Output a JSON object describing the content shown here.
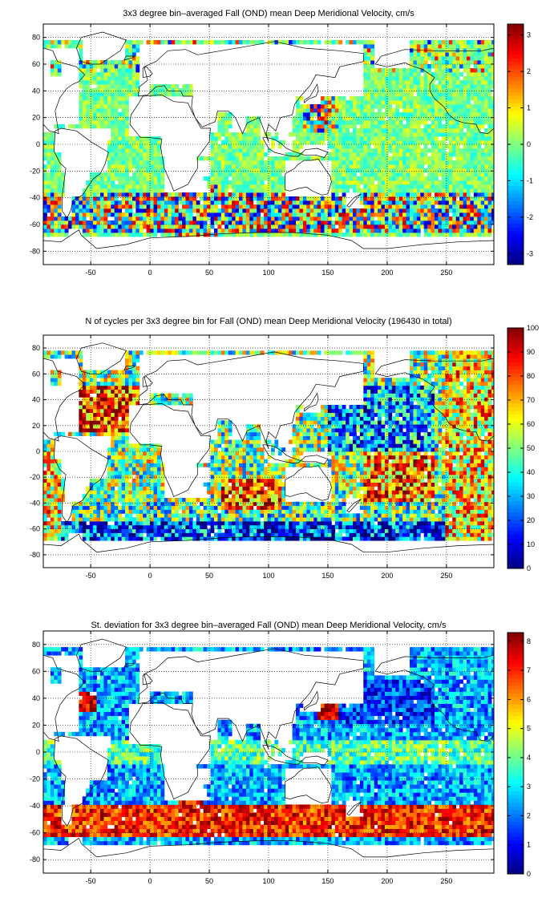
{
  "chart_data": [
    {
      "type": "heatmap",
      "title": "3x3 degree bin–averaged Fall (OND) mean Deep Meridional Velocity, cm/s",
      "xlabel": "",
      "ylabel": "",
      "xlim": [
        -90,
        290
      ],
      "ylim": [
        -90,
        90
      ],
      "x_ticks": [
        -50,
        0,
        50,
        100,
        150,
        200,
        250
      ],
      "y_ticks": [
        80,
        60,
        40,
        20,
        0,
        -20,
        -40,
        -60,
        -80
      ],
      "colorbar": {
        "range": [
          -3.3,
          3.3
        ],
        "ticks": [
          3,
          2,
          1,
          0,
          -1,
          -2,
          -3
        ],
        "colormap": "jet"
      },
      "field": "mean",
      "grid": "dotted"
    },
    {
      "type": "heatmap",
      "title": "N of cycles per 3x3 degree bin for Fall (OND) mean Deep Meridional Velocity (196430 in total)",
      "xlabel": "",
      "ylabel": "",
      "xlim": [
        -90,
        290
      ],
      "ylim": [
        -90,
        90
      ],
      "x_ticks": [
        -50,
        0,
        50,
        100,
        150,
        200,
        250
      ],
      "y_ticks": [
        80,
        60,
        40,
        20,
        0,
        -20,
        -40,
        -60,
        -80
      ],
      "colorbar": {
        "range": [
          0,
          100
        ],
        "ticks": [
          100,
          90,
          80,
          70,
          60,
          50,
          40,
          30,
          20,
          10,
          0
        ],
        "colormap": "jet"
      },
      "field": "count",
      "grid": "dotted"
    },
    {
      "type": "heatmap",
      "title": "St. deviation for 3x3 degree bin–averaged Fall (OND) mean Deep Meridional Velocity, cm/s",
      "xlabel": "",
      "ylabel": "",
      "xlim": [
        -90,
        290
      ],
      "ylim": [
        -90,
        90
      ],
      "x_ticks": [
        -50,
        0,
        50,
        100,
        150,
        200,
        250
      ],
      "y_ticks": [
        80,
        60,
        40,
        20,
        0,
        -20,
        -40,
        -60,
        -80
      ],
      "colorbar": {
        "range": [
          0,
          8.3
        ],
        "ticks": [
          8,
          7,
          6,
          5,
          4,
          3,
          2,
          1,
          0
        ],
        "colormap": "jet"
      },
      "field": "std",
      "grid": "dotted"
    }
  ]
}
